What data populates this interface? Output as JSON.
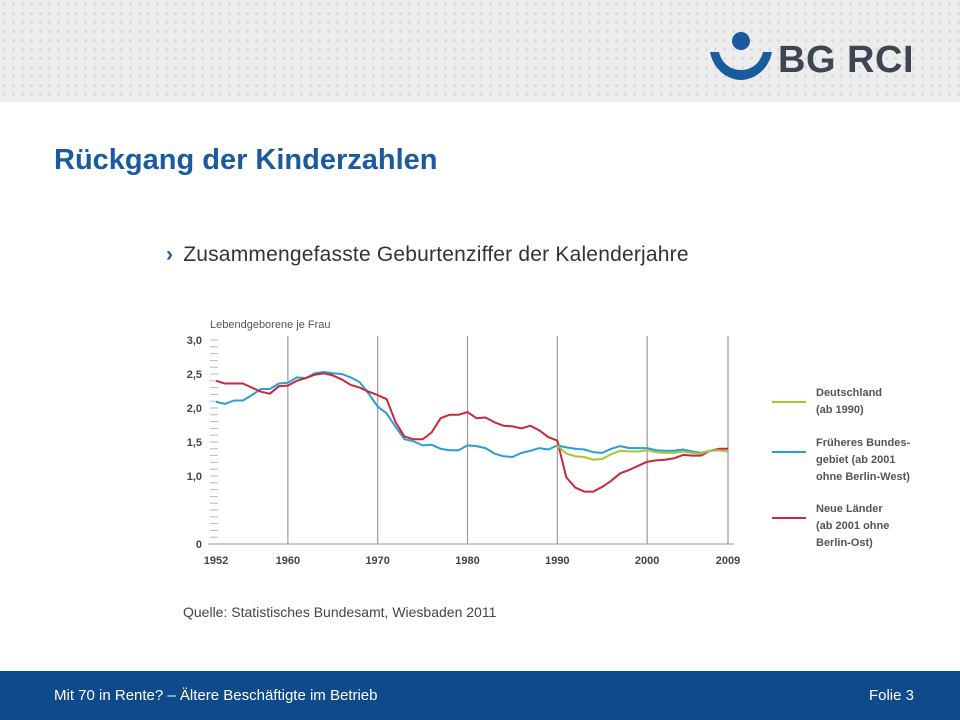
{
  "header": {
    "logo_text": "BG RCI",
    "colors": {
      "logo_blue": "#1a5a9e",
      "logo_text": "#3d4651"
    }
  },
  "slide": {
    "title": "Rückgang der Kinderzahlen",
    "bullet_icon": "chevron-right-icon",
    "bullet": "Zusammengefasste Geburtenziffer der Kalenderjahre",
    "source": "Quelle: Statistisches Bundesamt, Wiesbaden 2011"
  },
  "footer": {
    "left": "Mit 70 in Rente? – Ältere Beschäftigte im Betrieb",
    "right": "Folie 3",
    "color": "#0f4a8a"
  },
  "chart_data": {
    "type": "line",
    "title": "",
    "ylabel": "Lebendgeborene je Frau",
    "xlabel": "",
    "xlim": [
      1952,
      2009
    ],
    "ylim": [
      0,
      3.0
    ],
    "yticks": [
      {
        "value": 3.0,
        "label": "3,0"
      },
      {
        "value": 2.5,
        "label": "2,5"
      },
      {
        "value": 2.0,
        "label": "2,0"
      },
      {
        "value": 1.5,
        "label": "1,5"
      },
      {
        "value": 1.0,
        "label": "1,0"
      },
      {
        "value": 0,
        "label": "0"
      }
    ],
    "xticks": [
      {
        "value": 1952,
        "label": "1952"
      },
      {
        "value": 1960,
        "label": "1960"
      },
      {
        "value": 1970,
        "label": "1970"
      },
      {
        "value": 1980,
        "label": "1980"
      },
      {
        "value": 1990,
        "label": "1990"
      },
      {
        "value": 2000,
        "label": "2000"
      },
      {
        "value": 2009,
        "label": "2009"
      }
    ],
    "vlines": [
      1960,
      1970,
      1980,
      1990,
      2000,
      2009
    ],
    "legend_position": "right",
    "series": [
      {
        "name": "Deutschland (ab 1990)",
        "legend_lines": [
          "Deutschland",
          "(ab 1990)"
        ],
        "color": "#a6c637",
        "x": [
          1990,
          1991,
          1992,
          1993,
          1994,
          1995,
          1996,
          1997,
          1998,
          1999,
          2000,
          2001,
          2002,
          2003,
          2004,
          2005,
          2006,
          2007,
          2008,
          2009
        ],
        "y": [
          1.45,
          1.33,
          1.29,
          1.28,
          1.24,
          1.25,
          1.32,
          1.37,
          1.36,
          1.36,
          1.38,
          1.35,
          1.34,
          1.34,
          1.36,
          1.34,
          1.33,
          1.37,
          1.38,
          1.36
        ]
      },
      {
        "name": "Früheres Bundesgebiet (ab 2001 ohne Berlin-West)",
        "legend_lines": [
          "Früheres Bundes-",
          "gebiet (ab 2001",
          "ohne Berlin-West)"
        ],
        "color": "#2a9fd2",
        "x": [
          1952,
          1953,
          1954,
          1955,
          1956,
          1957,
          1958,
          1959,
          1960,
          1961,
          1962,
          1963,
          1964,
          1965,
          1966,
          1967,
          1968,
          1969,
          1970,
          1971,
          1972,
          1973,
          1974,
          1975,
          1976,
          1977,
          1978,
          1979,
          1980,
          1981,
          1982,
          1983,
          1984,
          1985,
          1986,
          1987,
          1988,
          1989,
          1990,
          1991,
          1992,
          1993,
          1994,
          1995,
          1996,
          1997,
          1998,
          1999,
          2000,
          2001,
          2002,
          2003,
          2004,
          2005,
          2006,
          2007,
          2008,
          2009
        ],
        "y": [
          2.09,
          2.06,
          2.11,
          2.11,
          2.19,
          2.28,
          2.28,
          2.36,
          2.37,
          2.45,
          2.44,
          2.51,
          2.53,
          2.51,
          2.5,
          2.45,
          2.38,
          2.21,
          2.02,
          1.92,
          1.72,
          1.54,
          1.51,
          1.45,
          1.46,
          1.4,
          1.38,
          1.38,
          1.45,
          1.44,
          1.41,
          1.33,
          1.29,
          1.28,
          1.34,
          1.37,
          1.41,
          1.39,
          1.45,
          1.42,
          1.4,
          1.39,
          1.35,
          1.34,
          1.4,
          1.44,
          1.41,
          1.41,
          1.41,
          1.38,
          1.37,
          1.37,
          1.39,
          1.36,
          1.34,
          1.37,
          1.38,
          1.36
        ]
      },
      {
        "name": "Neue Länder (ab 2001 ohne Berlin-Ost)",
        "legend_lines": [
          "Neue Länder",
          "(ab 2001 ohne",
          "Berlin-Ost)"
        ],
        "color": "#c8283a",
        "x": [
          1952,
          1953,
          1954,
          1955,
          1956,
          1957,
          1958,
          1959,
          1960,
          1961,
          1962,
          1963,
          1964,
          1965,
          1966,
          1967,
          1968,
          1969,
          1970,
          1971,
          1972,
          1973,
          1974,
          1975,
          1976,
          1977,
          1978,
          1979,
          1980,
          1981,
          1982,
          1983,
          1984,
          1985,
          1986,
          1987,
          1988,
          1989,
          1990,
          1991,
          1992,
          1993,
          1994,
          1995,
          1996,
          1997,
          1998,
          1999,
          2000,
          2001,
          2002,
          2003,
          2004,
          2005,
          2006,
          2007,
          2008,
          2009
        ],
        "y": [
          2.4,
          2.36,
          2.36,
          2.36,
          2.3,
          2.24,
          2.21,
          2.32,
          2.33,
          2.4,
          2.44,
          2.49,
          2.51,
          2.48,
          2.42,
          2.34,
          2.3,
          2.24,
          2.19,
          2.13,
          1.79,
          1.58,
          1.54,
          1.54,
          1.64,
          1.85,
          1.9,
          1.9,
          1.94,
          1.85,
          1.86,
          1.79,
          1.74,
          1.73,
          1.7,
          1.74,
          1.67,
          1.57,
          1.52,
          0.98,
          0.83,
          0.77,
          0.77,
          0.84,
          0.93,
          1.04,
          1.09,
          1.15,
          1.21,
          1.23,
          1.24,
          1.26,
          1.31,
          1.3,
          1.3,
          1.37,
          1.4,
          1.4
        ]
      }
    ]
  }
}
